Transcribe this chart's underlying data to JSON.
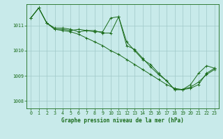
{
  "title": "Graphe pression niveau de la mer (hPa)",
  "background_color": "#c8eaea",
  "grid_color": "#a0c8c8",
  "line_color": "#1a6b1a",
  "ylim": [
    1007.7,
    1011.85
  ],
  "xlim": [
    -0.5,
    23.5
  ],
  "yticks": [
    1008,
    1009,
    1010,
    1011
  ],
  "xticks": [
    0,
    1,
    2,
    3,
    4,
    5,
    6,
    7,
    8,
    9,
    10,
    11,
    12,
    13,
    14,
    15,
    16,
    17,
    18,
    19,
    20,
    21,
    22,
    23
  ],
  "series": [
    [
      1011.3,
      1011.7,
      1011.1,
      1010.85,
      1010.8,
      1010.75,
      1010.65,
      1010.5,
      1010.35,
      1010.2,
      1010.0,
      1009.85,
      1009.65,
      1009.45,
      1009.25,
      1009.05,
      1008.85,
      1008.65,
      1008.5,
      1008.45,
      1008.55,
      1008.75,
      1009.05,
      1009.25
    ],
    [
      1011.3,
      1011.7,
      1011.1,
      1010.9,
      1010.9,
      1010.85,
      1010.75,
      1010.8,
      1010.75,
      1010.75,
      1011.3,
      1011.35,
      1010.35,
      1010.0,
      1009.65,
      1009.45,
      1009.1,
      1008.8,
      1008.45,
      1008.45,
      1008.65,
      1009.1,
      1009.4,
      1009.3
    ],
    [
      1011.3,
      1011.7,
      1011.1,
      1010.85,
      1010.85,
      1010.8,
      1010.85,
      1010.8,
      1010.8,
      1010.7,
      1010.7,
      1011.35,
      1010.2,
      1010.05,
      1009.7,
      1009.35,
      1009.05,
      1008.8,
      1008.45,
      1008.45,
      1008.5,
      1008.65,
      1009.1,
      1009.3
    ]
  ],
  "title_fontsize": 5.5,
  "tick_fontsize": 4.8
}
